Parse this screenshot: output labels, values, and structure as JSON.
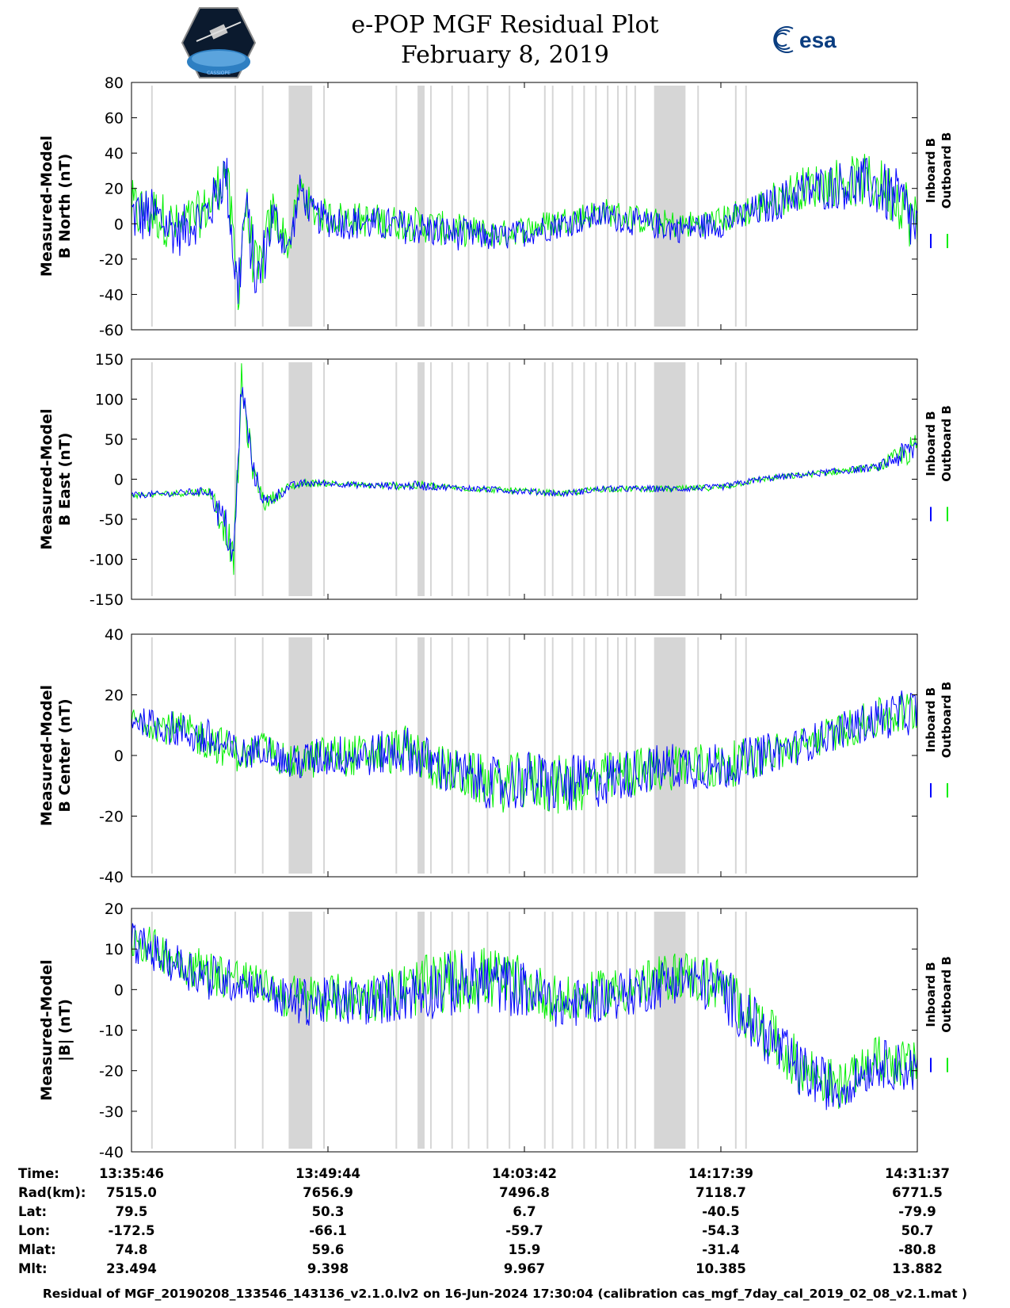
{
  "title": "e-POP MGF Residual Plot",
  "date": "February 8, 2019",
  "logos": {
    "left": "CASSIOPE",
    "right": "esa"
  },
  "colors": {
    "inboard": "#0000ff",
    "outboard": "#00ee00",
    "gap": "#d6d6d6"
  },
  "chart_data": [
    {
      "type": "line",
      "ylabel_line1": "Measured-Model",
      "ylabel_line2": "B North (nT)",
      "ylim": [
        -60,
        80
      ],
      "yticks": [
        "80",
        "60",
        "40",
        "20",
        "0",
        "-20",
        "-40",
        "-60"
      ],
      "ytick_values": [
        80,
        60,
        40,
        20,
        0,
        -20,
        -40,
        -60
      ],
      "legend": [
        "Inboard B",
        "Outboard B"
      ],
      "series": [
        {
          "name": "Inboard B",
          "color": "#0000ff",
          "x": [
            0,
            0.03,
            0.06,
            0.1,
            0.12,
            0.135,
            0.145,
            0.16,
            0.18,
            0.2,
            0.215,
            0.23,
            0.25,
            0.3,
            0.36,
            0.4,
            0.47,
            0.55,
            0.6,
            0.65,
            0.7,
            0.75,
            0.8,
            0.85,
            0.9,
            0.94,
            0.98,
            1.0
          ],
          "values": [
            5,
            4,
            -5,
            8,
            30,
            -40,
            10,
            -35,
            5,
            -15,
            20,
            5,
            2,
            0,
            -2,
            -5,
            -8,
            0,
            5,
            0,
            -3,
            0,
            8,
            18,
            22,
            22,
            12,
            -5
          ],
          "amp": [
            18,
            16,
            14,
            14,
            16,
            20,
            16,
            20,
            14,
            10,
            10,
            10,
            10,
            10,
            10,
            10,
            8,
            8,
            8,
            8,
            8,
            8,
            10,
            12,
            14,
            16,
            18,
            20
          ]
        },
        {
          "name": "Outboard B",
          "color": "#00ee00",
          "offset": 2
        }
      ]
    },
    {
      "type": "line",
      "ylabel_line1": "Measured-Model",
      "ylabel_line2": "B East (nT)",
      "ylim": [
        -150,
        150
      ],
      "yticks": [
        "150",
        "100",
        "50",
        "0",
        "-50",
        "-100",
        "-150"
      ],
      "ytick_values": [
        150,
        100,
        50,
        0,
        -50,
        -100,
        -150
      ],
      "legend": [
        "Inboard B",
        "Outboard B"
      ],
      "series": [
        {
          "name": "Inboard B",
          "color": "#0000ff",
          "x": [
            0,
            0.05,
            0.1,
            0.11,
            0.12,
            0.13,
            0.135,
            0.14,
            0.145,
            0.155,
            0.17,
            0.2,
            0.22,
            0.25,
            0.3,
            0.37,
            0.4,
            0.5,
            0.55,
            0.6,
            0.65,
            0.7,
            0.75,
            0.8,
            0.85,
            0.95,
            0.98,
            1.0
          ],
          "values": [
            -20,
            -18,
            -15,
            -40,
            -60,
            -100,
            0,
            120,
            80,
            10,
            -30,
            -10,
            -5,
            -5,
            -8,
            -8,
            -10,
            -15,
            -18,
            -12,
            -12,
            -12,
            -10,
            0,
            5,
            15,
            30,
            40
          ],
          "amp": [
            4,
            4,
            6,
            20,
            25,
            20,
            30,
            25,
            25,
            15,
            10,
            6,
            5,
            4,
            4,
            6,
            4,
            4,
            4,
            4,
            4,
            4,
            4,
            4,
            4,
            5,
            15,
            20
          ]
        },
        {
          "name": "Outboard B",
          "color": "#00ee00",
          "offset": 0
        }
      ]
    },
    {
      "type": "line",
      "ylabel_line1": "Measured-Model",
      "ylabel_line2": "B Center (nT)",
      "ylim": [
        -40,
        40
      ],
      "yticks": [
        "40",
        "20",
        "0",
        "-20",
        "-40"
      ],
      "ytick_values": [
        40,
        20,
        0,
        -20,
        -40
      ],
      "legend": [
        "Inboard B",
        "Outboard B"
      ],
      "series": [
        {
          "name": "Inboard B",
          "color": "#0000ff",
          "x": [
            0,
            0.05,
            0.1,
            0.14,
            0.17,
            0.2,
            0.25,
            0.3,
            0.35,
            0.4,
            0.47,
            0.5,
            0.55,
            0.6,
            0.65,
            0.7,
            0.75,
            0.8,
            0.85,
            0.9,
            0.95,
            1.0
          ],
          "values": [
            12,
            9,
            5,
            0,
            3,
            -3,
            0,
            0,
            2,
            -5,
            -10,
            -8,
            -10,
            -8,
            -5,
            -3,
            -4,
            0,
            3,
            8,
            12,
            15
          ],
          "amp": [
            4,
            6,
            7,
            6,
            5,
            6,
            7,
            7,
            8,
            8,
            9,
            10,
            10,
            9,
            8,
            8,
            8,
            7,
            6,
            6,
            7,
            8
          ]
        },
        {
          "name": "Outboard B",
          "color": "#00ee00",
          "offset": 0
        }
      ]
    },
    {
      "type": "line",
      "ylabel_line1": "Measured-Model",
      "ylabel_line2": "|B| (nT)",
      "ylim": [
        -40,
        20
      ],
      "yticks": [
        "20",
        "10",
        "0",
        "-10",
        "-20",
        "-30",
        "-40"
      ],
      "ytick_values": [
        20,
        10,
        0,
        -10,
        -20,
        -30,
        -40
      ],
      "legend": [
        "Inboard B",
        "Outboard B"
      ],
      "series": [
        {
          "name": "Inboard B",
          "color": "#0000ff",
          "x": [
            0,
            0.05,
            0.1,
            0.14,
            0.17,
            0.2,
            0.25,
            0.3,
            0.35,
            0.4,
            0.45,
            0.5,
            0.55,
            0.6,
            0.65,
            0.7,
            0.75,
            0.8,
            0.85,
            0.9,
            0.92,
            0.95,
            1.0
          ],
          "values": [
            12,
            7,
            3,
            2,
            0,
            -3,
            -3,
            -3,
            -1,
            1,
            2,
            0,
            -4,
            -2,
            0,
            3,
            0,
            -10,
            -20,
            -25,
            -22,
            -18,
            -20
          ],
          "amp": [
            5,
            5,
            6,
            5,
            4,
            6,
            6,
            6,
            7,
            8,
            8,
            7,
            6,
            6,
            6,
            6,
            7,
            7,
            7,
            6,
            5,
            6,
            6
          ]
        },
        {
          "name": "Outboard B",
          "color": "#00ee00",
          "offset": 1
        }
      ]
    }
  ],
  "gaps": [
    [
      0.025,
      0.027
    ],
    [
      0.131,
      0.133
    ],
    [
      0.166,
      0.168
    ],
    [
      0.2,
      0.23
    ],
    [
      0.244,
      0.246
    ],
    [
      0.336,
      0.338
    ],
    [
      0.364,
      0.373
    ],
    [
      0.38,
      0.382
    ],
    [
      0.407,
      0.409
    ],
    [
      0.428,
      0.43
    ],
    [
      0.452,
      0.454
    ],
    [
      0.48,
      0.482
    ],
    [
      0.525,
      0.527
    ],
    [
      0.535,
      0.537
    ],
    [
      0.56,
      0.562
    ],
    [
      0.575,
      0.577
    ],
    [
      0.59,
      0.592
    ],
    [
      0.605,
      0.607
    ],
    [
      0.618,
      0.62
    ],
    [
      0.629,
      0.631
    ],
    [
      0.64,
      0.642
    ],
    [
      0.665,
      0.705
    ],
    [
      0.72,
      0.722
    ],
    [
      0.768,
      0.77
    ],
    [
      0.781,
      0.783
    ]
  ],
  "time_table": {
    "labels": [
      "Time:",
      "Rad(km):",
      "Lat:",
      "Lon:",
      "Mlat:",
      "Mlt:"
    ],
    "columns": [
      {
        "time": "13:35:46",
        "rad": "7515.0",
        "lat": "79.5",
        "lon": "-172.5",
        "mlat": "74.8",
        "mlt": "23.494"
      },
      {
        "time": "13:49:44",
        "rad": "7656.9",
        "lat": "50.3",
        "lon": "-66.1",
        "mlat": "59.6",
        "mlt": "9.398"
      },
      {
        "time": "14:03:42",
        "rad": "7496.8",
        "lat": "6.7",
        "lon": "-59.7",
        "mlat": "15.9",
        "mlt": "9.967"
      },
      {
        "time": "14:17:39",
        "rad": "7118.7",
        "lat": "-40.5",
        "lon": "-54.3",
        "mlat": "-31.4",
        "mlt": "10.385"
      },
      {
        "time": "14:31:37",
        "rad": "6771.5",
        "lat": "-79.9",
        "lon": "50.7",
        "mlat": "-80.8",
        "mlt": "13.882"
      }
    ]
  },
  "footer": "Residual of MGF_20190208_133546_143136_v2.1.0.lv2 on 16-Jun-2024 17:30:04 (calibration cas_mgf_7day_cal_2019_02_08_v2.1.mat )"
}
